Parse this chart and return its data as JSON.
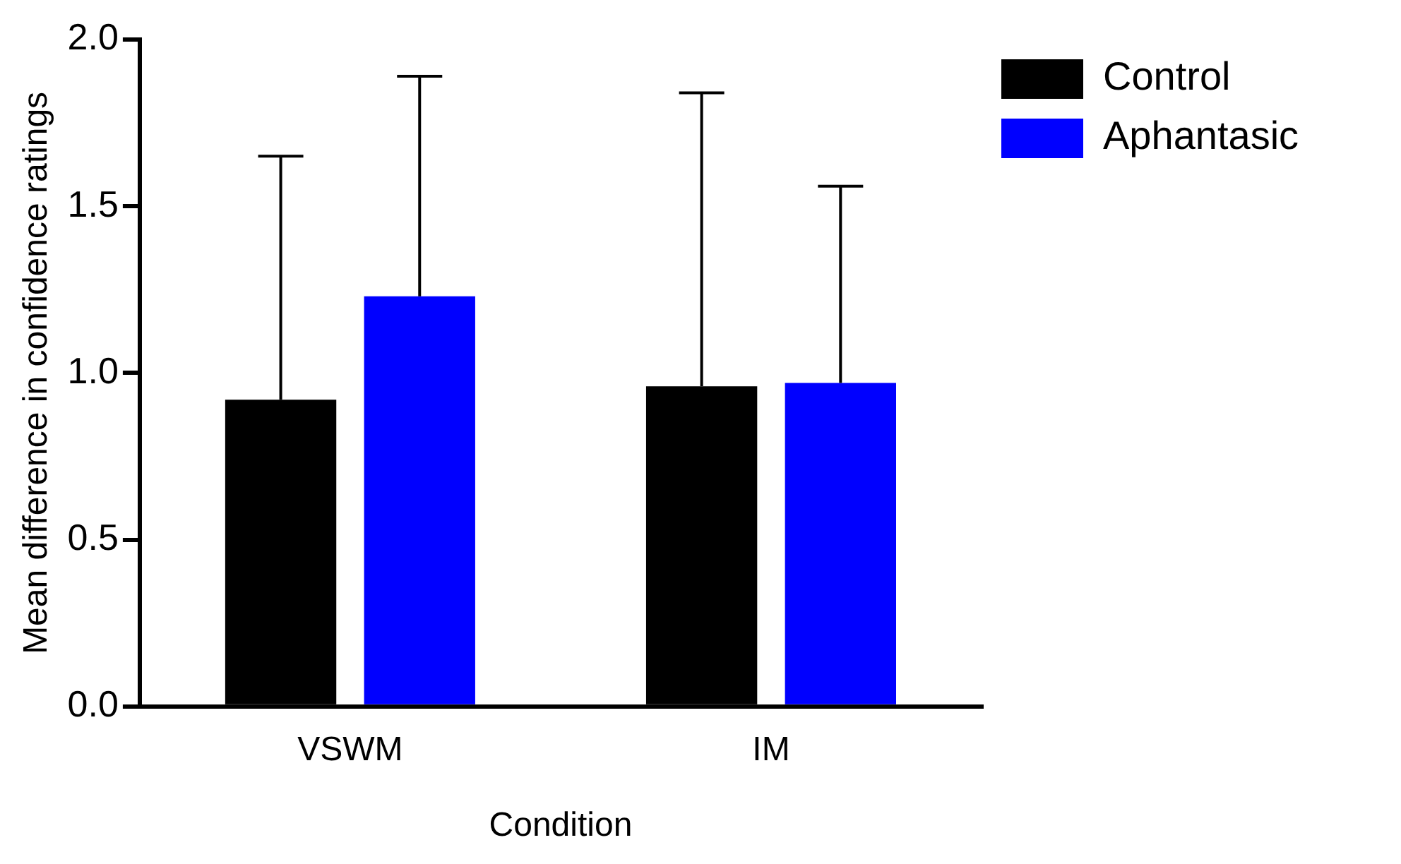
{
  "chart_data": {
    "type": "bar",
    "xlabel": "Condition",
    "ylabel": "Mean difference in confidence ratings",
    "categories": [
      "VSWM",
      "IM"
    ],
    "series": [
      {
        "name": "Control",
        "color": "#000000",
        "values": [
          0.92,
          0.96
        ],
        "errors": [
          [
            0.92,
            1.65
          ],
          [
            0.96,
            1.84
          ]
        ]
      },
      {
        "name": "Aphantasic",
        "color": "#0000ff",
        "values": [
          1.23,
          0.97
        ],
        "errors": [
          [
            1.23,
            1.89
          ],
          [
            0.97,
            1.56
          ]
        ]
      }
    ],
    "ylim": [
      0,
      2
    ],
    "yticks": [
      {
        "value": 0,
        "label": "0.0"
      },
      0.5,
      {
        "value": 1,
        "label": "1.0"
      },
      1.5,
      {
        "value": 2,
        "label": "2.0"
      }
    ],
    "grid": false,
    "legend": "top right"
  }
}
